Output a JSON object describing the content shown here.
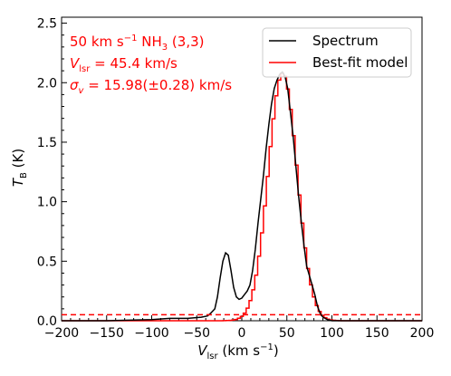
{
  "chart_data": {
    "type": "line",
    "xlabel_main": "V",
    "xlabel_sub": "lsr",
    "xlabel_unit_pre": " (km s",
    "xlabel_unit_sup": "−1",
    "xlabel_unit_post": ")",
    "ylabel_main": "T",
    "ylabel_sub": "B",
    "ylabel_unit": " (K)",
    "xlim": [
      -200,
      200
    ],
    "ylim": [
      0,
      2.55
    ],
    "xticks": [
      -200,
      -150,
      -100,
      -50,
      0,
      50,
      100,
      150,
      200
    ],
    "xtick_labels": [
      "−200",
      "−150",
      "−100",
      "−50",
      "0",
      "50",
      "100",
      "150",
      "200"
    ],
    "yticks": [
      0.0,
      0.5,
      1.0,
      1.5,
      2.0,
      2.5
    ],
    "ytick_labels": [
      "0.0",
      "0.5",
      "1.0",
      "1.5",
      "2.0",
      "2.5"
    ],
    "annotations": {
      "line1_a": "50 km s",
      "line1_sup": "−1",
      "line1_b": " NH",
      "line1_sub": "3",
      "line1_c": " (3,3)",
      "line2_a": "V",
      "line2_sub": "lsr",
      "line2_b": " = 45.4 km/s",
      "line3_a": "σ",
      "line3_sub": "v",
      "line3_b": " = 15.98(±0.28) km/s"
    },
    "legend": {
      "placement": "top-right",
      "entries": [
        "Spectrum",
        "Best-fit model"
      ]
    },
    "colors": {
      "spectrum": "#000000",
      "model": "#ff0000"
    },
    "model": {
      "center": 45.4,
      "sigma": 15.98,
      "amplitude": 2.08
    },
    "baseline": 0.05,
    "series": [
      {
        "name": "Spectrum",
        "x": [
          -200,
          -150,
          -100,
          -80,
          -60,
          -45,
          -38,
          -35,
          -30,
          -27,
          -24,
          -21,
          -18,
          -15,
          -12,
          -9,
          -6,
          -3,
          0,
          3,
          6,
          9,
          12,
          15,
          18,
          21,
          24,
          27,
          30,
          33,
          36,
          39,
          42,
          45,
          48,
          51,
          54,
          57,
          60,
          63,
          66,
          69,
          72,
          75,
          78,
          81,
          84,
          87,
          90,
          95,
          100,
          150,
          200
        ],
        "y": [
          0.0,
          0.0,
          0.01,
          0.02,
          0.02,
          0.03,
          0.04,
          0.06,
          0.1,
          0.2,
          0.36,
          0.5,
          0.57,
          0.55,
          0.42,
          0.28,
          0.2,
          0.18,
          0.19,
          0.22,
          0.25,
          0.3,
          0.42,
          0.6,
          0.82,
          1.02,
          1.22,
          1.45,
          1.65,
          1.82,
          1.95,
          2.02,
          2.07,
          2.09,
          2.05,
          1.95,
          1.75,
          1.55,
          1.3,
          1.05,
          0.83,
          0.63,
          0.46,
          0.38,
          0.3,
          0.22,
          0.12,
          0.06,
          0.03,
          0.01,
          0.0,
          0.0,
          0.0
        ]
      }
    ]
  }
}
